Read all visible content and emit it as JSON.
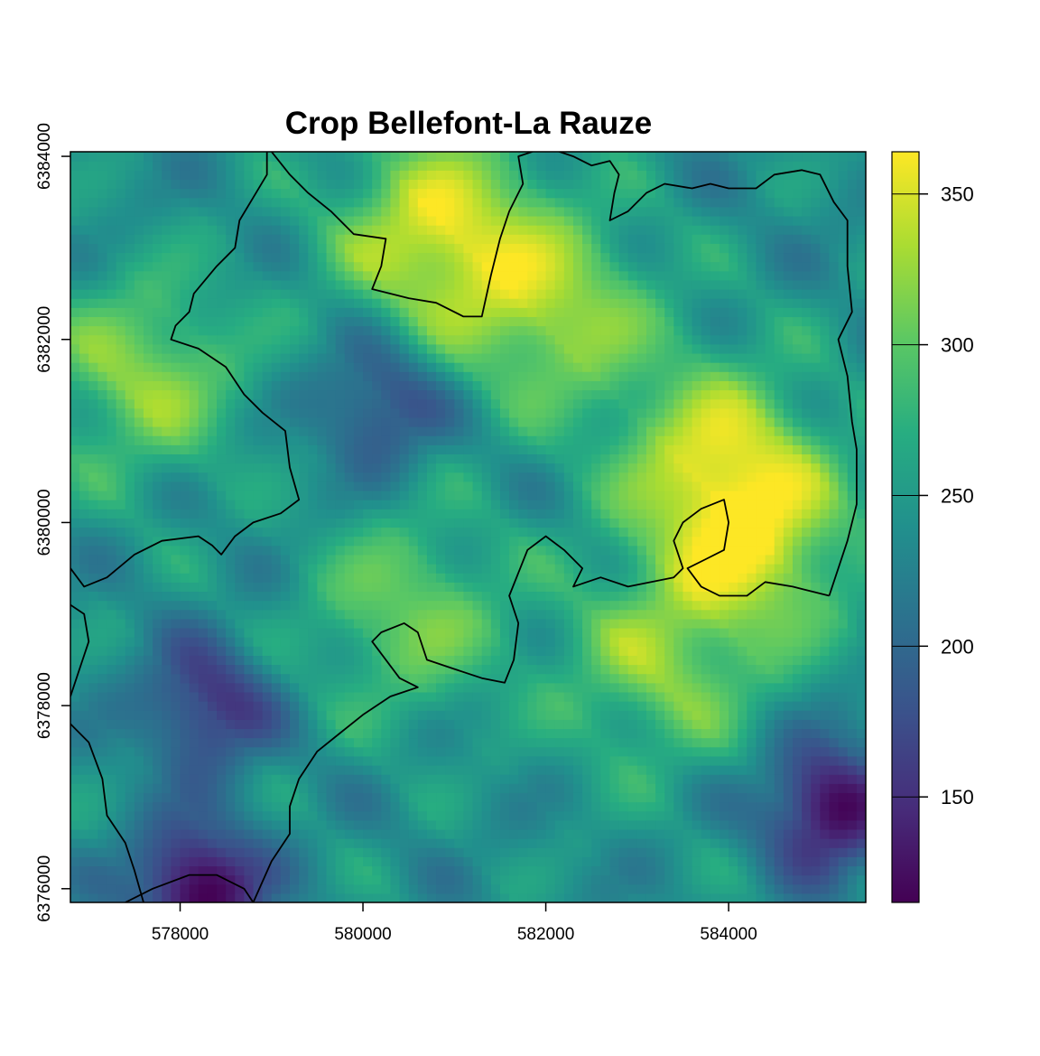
{
  "map": {
    "title": "Crop Bellefont-La Rauze",
    "x_axis": {
      "range": [
        576800,
        585500
      ],
      "ticks": [
        578000,
        580000,
        582000,
        584000
      ],
      "tick_labels": [
        "578000",
        "580000",
        "582000",
        "584000"
      ]
    },
    "y_axis": {
      "range": [
        6375850,
        6384050
      ],
      "ticks": [
        6376000,
        6378000,
        6380000,
        6382000,
        6384000
      ],
      "tick_labels": [
        "6376000",
        "6378000",
        "6380000",
        "6382000",
        "6384000"
      ]
    },
    "raster": {
      "value_range": [
        115,
        364
      ],
      "colormap": "viridis",
      "colors": [
        "#440154",
        "#472c7a",
        "#3b518b",
        "#2c718e",
        "#21908d",
        "#27ad81",
        "#5cc863",
        "#aadc32",
        "#fde725"
      ],
      "high_areas_description_values": [
        [
          580800,
          6383200,
          360
        ],
        [
          582100,
          6382300,
          335
        ],
        [
          583900,
          6380700,
          345
        ],
        [
          584300,
          6379700,
          335
        ],
        [
          577600,
          6381600,
          330
        ],
        [
          580500,
          6379000,
          320
        ],
        [
          583200,
          6378400,
          320
        ]
      ],
      "low_areas_description_values": [
        [
          578200,
          6376000,
          118
        ],
        [
          585100,
          6376900,
          125
        ],
        [
          580200,
          6381300,
          175
        ],
        [
          578300,
          6378000,
          160
        ]
      ]
    },
    "legend": {
      "ticks": [
        150,
        200,
        250,
        300,
        350
      ],
      "tick_labels": [
        "150",
        "200",
        "250",
        "300",
        "350"
      ]
    },
    "boundaries": [
      {
        "name": "west-commune",
        "points": [
          [
            576800,
            6379500
          ],
          [
            576950,
            6379300
          ],
          [
            577200,
            6379400
          ],
          [
            577500,
            6379650
          ],
          [
            577800,
            6379800
          ],
          [
            578200,
            6379850
          ],
          [
            578350,
            6379750
          ],
          [
            578450,
            6379650
          ],
          [
            578600,
            6379850
          ],
          [
            578800,
            6380000
          ],
          [
            579100,
            6380100
          ],
          [
            579300,
            6380250
          ],
          [
            579200,
            6380600
          ],
          [
            579150,
            6381000
          ],
          [
            578900,
            6381200
          ],
          [
            578700,
            6381400
          ],
          [
            578500,
            6381700
          ],
          [
            578200,
            6381900
          ],
          [
            577900,
            6382000
          ],
          [
            577950,
            6382150
          ],
          [
            578100,
            6382300
          ],
          [
            578150,
            6382500
          ],
          [
            578400,
            6382800
          ],
          [
            578600,
            6383000
          ],
          [
            578650,
            6383300
          ],
          [
            578800,
            6383550
          ],
          [
            578950,
            6383800
          ],
          [
            578950,
            6384050
          ]
        ]
      },
      {
        "name": "north-commune",
        "points": [
          [
            579000,
            6384050
          ],
          [
            579200,
            6383800
          ],
          [
            579400,
            6383600
          ],
          [
            579650,
            6383400
          ],
          [
            579900,
            6383150
          ],
          [
            580250,
            6383100
          ],
          [
            580200,
            6382800
          ],
          [
            580100,
            6382550
          ],
          [
            580500,
            6382450
          ],
          [
            580800,
            6382400
          ],
          [
            581100,
            6382250
          ],
          [
            581300,
            6382250
          ],
          [
            581400,
            6382700
          ],
          [
            581500,
            6383100
          ],
          [
            581600,
            6383400
          ],
          [
            581750,
            6383700
          ],
          [
            581700,
            6384000
          ],
          [
            582000,
            6384100
          ],
          [
            582300,
            6384000
          ],
          [
            582500,
            6383900
          ],
          [
            582700,
            6383950
          ],
          [
            582800,
            6383800
          ],
          [
            582750,
            6383600
          ],
          [
            582700,
            6383300
          ],
          [
            582900,
            6383400
          ],
          [
            583100,
            6383600
          ],
          [
            583300,
            6383700
          ],
          [
            583600,
            6383650
          ],
          [
            583800,
            6383700
          ],
          [
            584000,
            6383650
          ],
          [
            584300,
            6383650
          ],
          [
            584500,
            6383800
          ],
          [
            584800,
            6383850
          ],
          [
            585000,
            6383800
          ],
          [
            585150,
            6383500
          ],
          [
            585300,
            6383300
          ],
          [
            585300,
            6382800
          ],
          [
            585350,
            6382300
          ],
          [
            585200,
            6382000
          ],
          [
            585300,
            6381600
          ],
          [
            585350,
            6381100
          ],
          [
            585400,
            6380800
          ],
          [
            585400,
            6380200
          ],
          [
            585300,
            6379800
          ],
          [
            585200,
            6379500
          ],
          [
            585100,
            6379200
          ]
        ]
      },
      {
        "name": "central-commune",
        "points": [
          [
            585100,
            6379200
          ],
          [
            584700,
            6379300
          ],
          [
            584400,
            6379350
          ],
          [
            584200,
            6379200
          ],
          [
            583900,
            6379200
          ],
          [
            583700,
            6379300
          ],
          [
            583550,
            6379500
          ],
          [
            583750,
            6379600
          ],
          [
            583950,
            6379700
          ],
          [
            584000,
            6380000
          ],
          [
            583950,
            6380250
          ],
          [
            583700,
            6380150
          ],
          [
            583500,
            6380000
          ],
          [
            583400,
            6379800
          ],
          [
            583500,
            6379500
          ],
          [
            583400,
            6379400
          ],
          [
            582900,
            6379300
          ],
          [
            582600,
            6379400
          ],
          [
            582300,
            6379300
          ],
          [
            582400,
            6379500
          ],
          [
            582200,
            6379700
          ],
          [
            582000,
            6379850
          ],
          [
            581800,
            6379700
          ],
          [
            581700,
            6379450
          ],
          [
            581600,
            6379200
          ],
          [
            581700,
            6378900
          ],
          [
            581650,
            6378500
          ],
          [
            581550,
            6378250
          ],
          [
            581300,
            6378300
          ],
          [
            581000,
            6378400
          ],
          [
            580700,
            6378500
          ],
          [
            580600,
            6378800
          ],
          [
            580450,
            6378900
          ],
          [
            580200,
            6378800
          ],
          [
            580100,
            6378700
          ],
          [
            580250,
            6378500
          ],
          [
            580400,
            6378300
          ],
          [
            580600,
            6378200
          ],
          [
            580300,
            6378100
          ],
          [
            580000,
            6377900
          ],
          [
            579750,
            6377700
          ],
          [
            579500,
            6377500
          ],
          [
            579300,
            6377200
          ],
          [
            579200,
            6376900
          ],
          [
            579200,
            6376600
          ],
          [
            579000,
            6376300
          ],
          [
            578800,
            6375850
          ]
        ]
      },
      {
        "name": "southwest-commune",
        "points": [
          [
            576800,
            6379100
          ],
          [
            576950,
            6379000
          ],
          [
            577000,
            6378700
          ],
          [
            576900,
            6378400
          ],
          [
            576800,
            6378100
          ]
        ]
      },
      {
        "name": "southwest-commune-2",
        "points": [
          [
            576800,
            6377800
          ],
          [
            577000,
            6377600
          ],
          [
            577150,
            6377200
          ],
          [
            577200,
            6376800
          ],
          [
            577400,
            6376500
          ],
          [
            577500,
            6376200
          ],
          [
            577600,
            6375850
          ]
        ]
      },
      {
        "name": "south-loop",
        "points": [
          [
            577400,
            6375850
          ],
          [
            577700,
            6376000
          ],
          [
            578100,
            6376150
          ],
          [
            578400,
            6376150
          ],
          [
            578700,
            6376000
          ],
          [
            578800,
            6375850
          ]
        ]
      }
    ]
  }
}
